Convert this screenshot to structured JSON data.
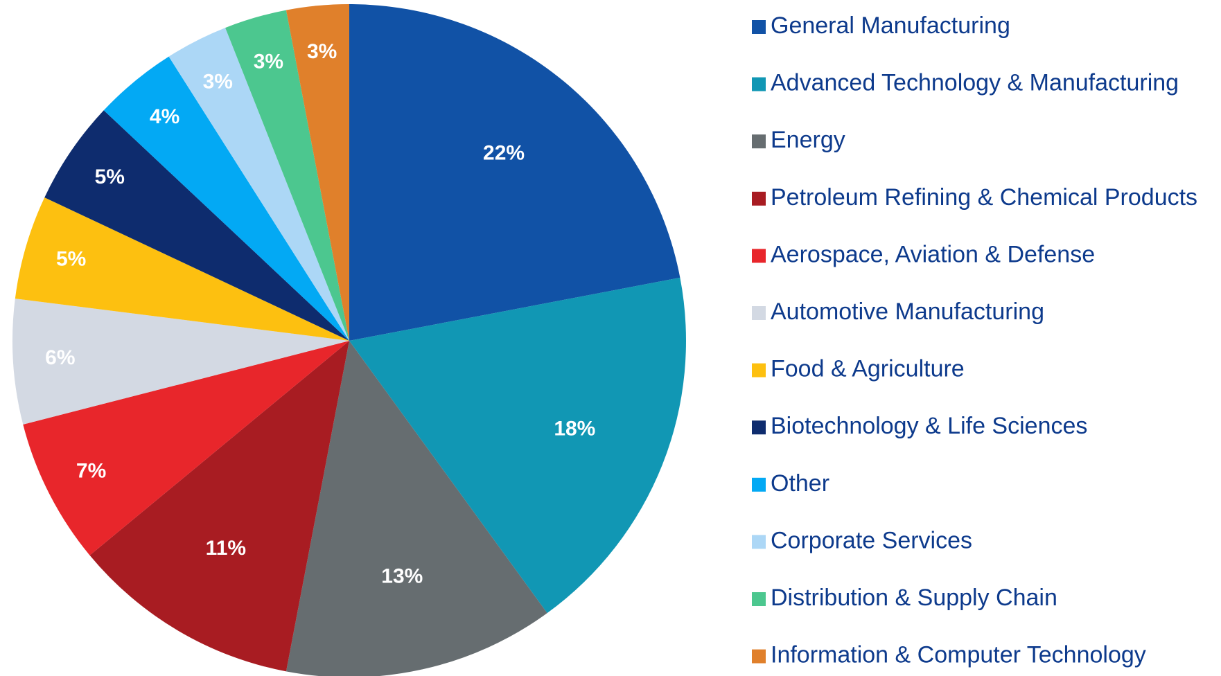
{
  "chart_data": {
    "type": "pie",
    "categories": [
      "General Manufacturing",
      "Advanced Technology & Manufacturing",
      "Energy",
      "Petroleum Refining & Chemical Products",
      "Aerospace, Aviation & Defense",
      "Automotive Manufacturing",
      "Food & Agriculture",
      "Biotechnology & Life Sciences",
      "Other",
      "Corporate Services",
      "Distribution & Supply Chain",
      "Information & Computer Technology"
    ],
    "values": [
      22,
      18,
      13,
      11,
      7,
      6,
      5,
      5,
      4,
      3,
      3,
      3
    ],
    "value_labels": [
      "22%",
      "18%",
      "13%",
      "11%",
      "7%",
      "6%",
      "5%",
      "5%",
      "4%",
      "3%",
      "3%",
      "3%"
    ],
    "colors": [
      "#1152a6",
      "#1197b4",
      "#666d70",
      "#a81c22",
      "#e8262b",
      "#d3d9e3",
      "#fdc010",
      "#0e2c6e",
      "#03a9f4",
      "#acd7f6",
      "#4cc78f",
      "#e0802b"
    ],
    "legend": "right"
  }
}
